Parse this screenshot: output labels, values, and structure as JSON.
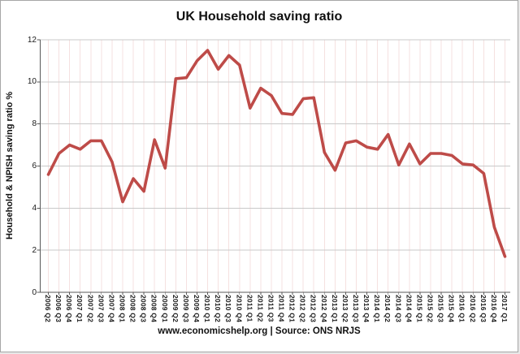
{
  "chart": {
    "title": "UK Household saving ratio",
    "ylabel": "Household & NPISH saving ratio %",
    "footer": "www.economicshelp.org | Source: ONS NRJS"
  },
  "chart_data": {
    "type": "line",
    "title": "UK Household saving ratio",
    "xlabel": "",
    "ylabel": "Household & NPISH saving ratio %",
    "ylim": [
      0,
      12
    ],
    "ytick_interval": 2,
    "grid": true,
    "legend_position": "none",
    "line_color": "#BE4B48",
    "categories": [
      "2006 Q2",
      "2006 Q3",
      "2006 Q4",
      "2007 Q1",
      "2007 Q2",
      "2007 Q3",
      "2007 Q4",
      "2008 Q1",
      "2008 Q2",
      "2008 Q3",
      "2008 Q4",
      "2009 Q1",
      "2009 Q2",
      "2009 Q3",
      "2009 Q4",
      "2010 Q1",
      "2010 Q2",
      "2010 Q3",
      "2010 Q4",
      "2011 Q1",
      "2011 Q2",
      "2011 Q3",
      "2011 Q4",
      "2012 Q1",
      "2012 Q2",
      "2012 Q3",
      "2012 Q4",
      "2013 Q1",
      "2013 Q2",
      "2013 Q3",
      "2013 Q4",
      "2014 Q1",
      "2014 Q2",
      "2014 Q3",
      "2014 Q4",
      "2015 Q1",
      "2015 Q2",
      "2015 Q3",
      "2015 Q4",
      "2016 Q1",
      "2016 Q2",
      "2016 Q3",
      "2016 Q4",
      "2017 Q1"
    ],
    "values": [
      5.6,
      6.6,
      7.0,
      6.8,
      7.2,
      7.2,
      6.2,
      4.3,
      5.4,
      4.8,
      7.25,
      5.9,
      10.15,
      10.2,
      11.0,
      11.5,
      10.6,
      11.25,
      10.8,
      8.75,
      9.7,
      9.35,
      8.5,
      8.45,
      9.2,
      9.25,
      6.65,
      5.8,
      7.1,
      7.2,
      6.9,
      6.8,
      7.5,
      6.05,
      7.05,
      6.1,
      6.6,
      6.6,
      6.5,
      6.1,
      6.05,
      5.65,
      3.1,
      1.7
    ],
    "source_caption": "www.economicshelp.org | Source: ONS NRJS"
  },
  "colors": {
    "line": "#BE4B48",
    "h_grid": "#c9c9c9",
    "v_grid": "#f5e1e0",
    "axis": "#595959",
    "text": "#1a1a1a",
    "background": "#ffffff",
    "border": "#a6a6a6"
  }
}
